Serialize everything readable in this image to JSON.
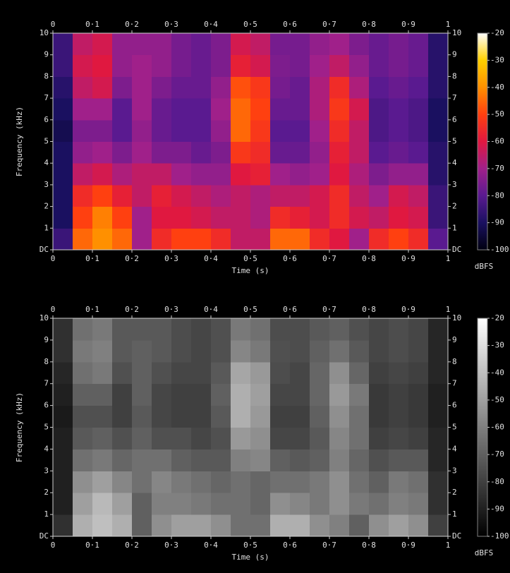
{
  "chart_data": [
    {
      "type": "heatmap",
      "xlabel": "Time (s)",
      "ylabel": "Frequency (kHz)",
      "zlabel": "dBFS",
      "x_bins": [
        0,
        0.05,
        0.1,
        0.15,
        0.2,
        0.25,
        0.3,
        0.35,
        0.4,
        0.45,
        0.5,
        0.55,
        0.6,
        0.65,
        0.7,
        0.75,
        0.8,
        0.85,
        0.9,
        0.95,
        1
      ],
      "y_bins": [
        0,
        1,
        2,
        3,
        4,
        5,
        6,
        7,
        8,
        9,
        10
      ],
      "values": [
        [
          -85,
          -45,
          -40,
          -45,
          -70,
          -55,
          -50,
          -50,
          -55,
          -65,
          -65,
          -45,
          -45,
          -55,
          -60,
          -70,
          -55,
          -50,
          -55,
          -80
        ],
        [
          -90,
          -50,
          -42,
          -50,
          -70,
          -60,
          -60,
          -62,
          -65,
          -65,
          -68,
          -55,
          -58,
          -62,
          -55,
          -62,
          -65,
          -60,
          -62,
          -85
        ],
        [
          -90,
          -55,
          -50,
          -58,
          -65,
          -58,
          -62,
          -65,
          -68,
          -65,
          -68,
          -65,
          -65,
          -62,
          -55,
          -65,
          -70,
          -62,
          -65,
          -85
        ],
        [
          -90,
          -65,
          -62,
          -68,
          -65,
          -65,
          -70,
          -72,
          -72,
          -60,
          -58,
          -70,
          -72,
          -70,
          -60,
          -68,
          -75,
          -72,
          -72,
          -88
        ],
        [
          -90,
          -72,
          -70,
          -75,
          -70,
          -75,
          -75,
          -78,
          -75,
          -52,
          -55,
          -78,
          -78,
          -72,
          -58,
          -65,
          -80,
          -78,
          -80,
          -88
        ],
        [
          -92,
          -75,
          -75,
          -80,
          -72,
          -78,
          -80,
          -80,
          -72,
          -45,
          -52,
          -80,
          -80,
          -70,
          -55,
          -65,
          -82,
          -80,
          -82,
          -90
        ],
        [
          -90,
          -70,
          -70,
          -80,
          -70,
          -78,
          -80,
          -80,
          -70,
          -45,
          -50,
          -78,
          -78,
          -68,
          -52,
          -62,
          -82,
          -80,
          -82,
          -90
        ],
        [
          -88,
          -65,
          -62,
          -75,
          -70,
          -75,
          -78,
          -78,
          -72,
          -48,
          -52,
          -76,
          -78,
          -68,
          -55,
          -68,
          -80,
          -78,
          -80,
          -88
        ],
        [
          -85,
          -62,
          -60,
          -72,
          -70,
          -72,
          -76,
          -78,
          -75,
          -58,
          -62,
          -75,
          -76,
          -70,
          -65,
          -72,
          -78,
          -76,
          -78,
          -88
        ],
        [
          -85,
          -65,
          -62,
          -72,
          -72,
          -72,
          -76,
          -78,
          -75,
          -62,
          -65,
          -76,
          -76,
          -72,
          -70,
          -75,
          -78,
          -76,
          -78,
          -88
        ]
      ],
      "xlim": [
        0,
        1
      ],
      "ylim": [
        0,
        10
      ],
      "xticks": [
        0,
        {
          "value": 0.1,
          "label": "0·1"
        },
        {
          "value": 0.2,
          "label": "0·2"
        },
        {
          "value": 0.3,
          "label": "0·3"
        },
        {
          "value": 0.4,
          "label": "0·4"
        },
        {
          "value": 0.5,
          "label": "0·5"
        },
        {
          "value": 0.6,
          "label": "0·6"
        },
        {
          "value": 0.7,
          "label": "0·7"
        },
        {
          "value": 0.8,
          "label": "0·8"
        },
        {
          "value": 0.9,
          "label": "0·9"
        },
        1
      ],
      "yticks": [
        {
          "value": 0,
          "label": "DC"
        },
        1,
        2,
        3,
        4,
        5,
        6,
        7,
        8,
        9,
        10
      ],
      "zlim": [
        -100,
        -20
      ],
      "zticks": [
        -20,
        -30,
        -40,
        -50,
        -60,
        -70,
        -80,
        -90,
        -100
      ],
      "colorscale": [
        "#000010",
        "#1a1060",
        "#5a1a90",
        "#a0208a",
        "#e01840",
        "#ff4010",
        "#ff9000",
        "#ffd000",
        "#ffffff"
      ]
    },
    {
      "type": "heatmap",
      "xlabel": "Time (s)",
      "ylabel": "Frequency (kHz)",
      "zlabel": "dBFS",
      "x_bins": [
        0,
        0.05,
        0.1,
        0.15,
        0.2,
        0.25,
        0.3,
        0.35,
        0.4,
        0.45,
        0.5,
        0.55,
        0.6,
        0.65,
        0.7,
        0.75,
        0.8,
        0.85,
        0.9,
        0.95,
        1
      ],
      "y_bins": [
        0,
        1,
        2,
        3,
        4,
        5,
        6,
        7,
        8,
        9,
        10
      ],
      "values": [
        [
          -85,
          -45,
          -40,
          -45,
          -70,
          -55,
          -50,
          -50,
          -55,
          -65,
          -65,
          -45,
          -45,
          -55,
          -60,
          -70,
          -55,
          -50,
          -55,
          -80
        ],
        [
          -90,
          -50,
          -42,
          -50,
          -70,
          -60,
          -60,
          -62,
          -65,
          -65,
          -68,
          -55,
          -58,
          -62,
          -55,
          -62,
          -65,
          -60,
          -62,
          -85
        ],
        [
          -90,
          -55,
          -50,
          -58,
          -65,
          -58,
          -62,
          -65,
          -68,
          -65,
          -68,
          -65,
          -65,
          -62,
          -55,
          -65,
          -70,
          -62,
          -65,
          -85
        ],
        [
          -90,
          -65,
          -62,
          -68,
          -65,
          -65,
          -70,
          -72,
          -72,
          -60,
          -58,
          -70,
          -72,
          -70,
          -60,
          -68,
          -75,
          -72,
          -72,
          -88
        ],
        [
          -90,
          -72,
          -70,
          -75,
          -70,
          -75,
          -75,
          -78,
          -75,
          -52,
          -55,
          -78,
          -78,
          -72,
          -58,
          -65,
          -80,
          -78,
          -80,
          -88
        ],
        [
          -92,
          -75,
          -75,
          -80,
          -72,
          -78,
          -80,
          -80,
          -72,
          -45,
          -52,
          -80,
          -80,
          -70,
          -55,
          -65,
          -82,
          -80,
          -82,
          -90
        ],
        [
          -90,
          -70,
          -70,
          -80,
          -70,
          -78,
          -80,
          -80,
          -70,
          -45,
          -50,
          -78,
          -78,
          -68,
          -52,
          -62,
          -82,
          -80,
          -82,
          -90
        ],
        [
          -88,
          -65,
          -62,
          -75,
          -70,
          -75,
          -78,
          -78,
          -72,
          -48,
          -52,
          -76,
          -78,
          -68,
          -55,
          -68,
          -80,
          -78,
          -80,
          -88
        ],
        [
          -85,
          -62,
          -60,
          -72,
          -70,
          -72,
          -76,
          -78,
          -75,
          -58,
          -62,
          -75,
          -76,
          -70,
          -65,
          -72,
          -78,
          -76,
          -78,
          -88
        ],
        [
          -85,
          -65,
          -62,
          -72,
          -72,
          -72,
          -76,
          -78,
          -75,
          -62,
          -65,
          -76,
          -76,
          -72,
          -70,
          -75,
          -78,
          -76,
          -78,
          -88
        ]
      ],
      "xlim": [
        0,
        1
      ],
      "ylim": [
        0,
        10
      ],
      "xticks": [
        0,
        {
          "value": 0.1,
          "label": "0·1"
        },
        {
          "value": 0.2,
          "label": "0·2"
        },
        {
          "value": 0.3,
          "label": "0·3"
        },
        {
          "value": 0.4,
          "label": "0·4"
        },
        {
          "value": 0.5,
          "label": "0·5"
        },
        {
          "value": 0.6,
          "label": "0·6"
        },
        {
          "value": 0.7,
          "label": "0·7"
        },
        {
          "value": 0.8,
          "label": "0·8"
        },
        {
          "value": 0.9,
          "label": "0·9"
        },
        1
      ],
      "yticks": [
        {
          "value": 0,
          "label": "DC"
        },
        1,
        2,
        3,
        4,
        5,
        6,
        7,
        8,
        9,
        10
      ],
      "zlim": [
        -100,
        -20
      ],
      "zticks": [
        -20,
        -30,
        -40,
        -50,
        -60,
        -70,
        -80,
        -90,
        -100
      ],
      "colorscale": [
        "#000000",
        "#ffffff"
      ]
    }
  ]
}
